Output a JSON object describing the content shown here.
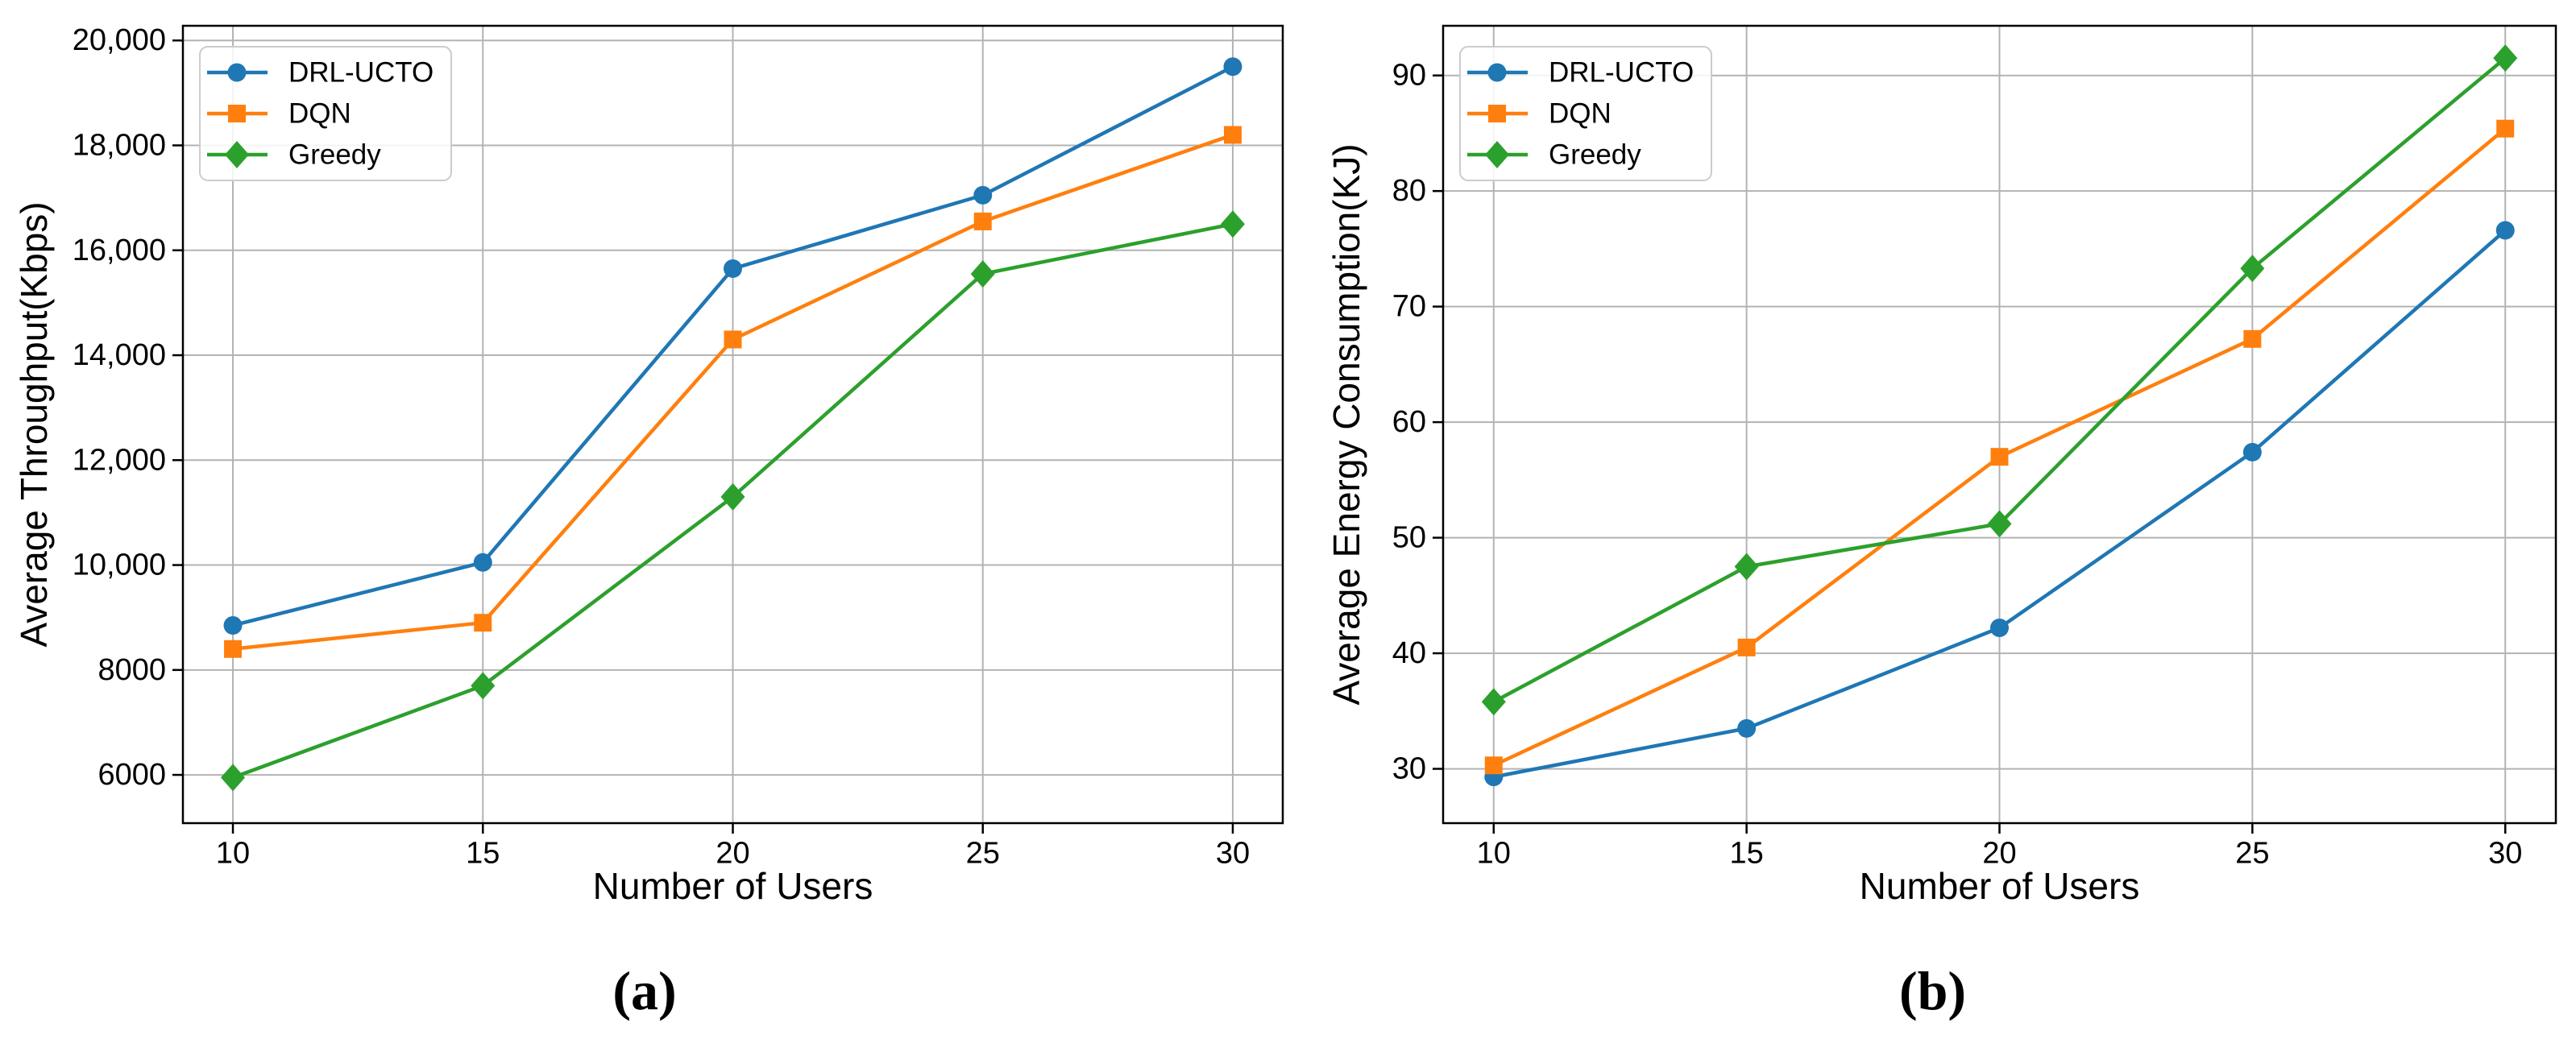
{
  "styles": {
    "grid_color": "#b3b3b3",
    "axis_color": "#000000",
    "text_color": "#000000",
    "legend_border_color": "#cccccc",
    "legend_background": "rgba(255,255,255,0.85)",
    "series_colors": {
      "drl_ucto": "#1f77b4",
      "dqn": "#ff7f0e",
      "greedy": "#2ca02c"
    }
  },
  "chart_data": [
    {
      "type": "line",
      "caption": "(a)",
      "xlabel": "Number of Users",
      "ylabel": "Average Throughput(Kbps)",
      "x": [
        10,
        15,
        20,
        25,
        30
      ],
      "xtick_labels": [
        "10",
        "15",
        "20",
        "25",
        "30"
      ],
      "yticks": [
        6000,
        8000,
        10000,
        12000,
        14000,
        16000,
        18000,
        20000
      ],
      "ytick_labels": [
        "6000",
        "8000",
        "10,000",
        "12,000",
        "14,000",
        "16,000",
        "18,000",
        "20,000"
      ],
      "xlim": [
        9,
        31
      ],
      "ylim": [
        5080,
        20280
      ],
      "grid": true,
      "legend_position": "upper-left",
      "series": [
        {
          "name": "DRL-UCTO",
          "color": "#1f77b4",
          "marker": "circle",
          "values": [
            8850,
            10050,
            15650,
            17050,
            19500
          ]
        },
        {
          "name": "DQN",
          "color": "#ff7f0e",
          "marker": "square",
          "values": [
            8400,
            8900,
            14300,
            16550,
            18200
          ]
        },
        {
          "name": "Greedy",
          "color": "#2ca02c",
          "marker": "diamond",
          "values": [
            5950,
            7700,
            11300,
            15550,
            16500
          ]
        }
      ]
    },
    {
      "type": "line",
      "caption": "(b)",
      "xlabel": "Number of Users",
      "ylabel": "Average Energy Consumption(KJ)",
      "x": [
        10,
        15,
        20,
        25,
        30
      ],
      "xtick_labels": [
        "10",
        "15",
        "20",
        "25",
        "30"
      ],
      "yticks": [
        30,
        40,
        50,
        60,
        70,
        80,
        90
      ],
      "ytick_labels": [
        "30",
        "40",
        "50",
        "60",
        "70",
        "80",
        "90"
      ],
      "xlim": [
        9,
        31
      ],
      "ylim": [
        25.3,
        94.3
      ],
      "grid": true,
      "legend_position": "upper-left",
      "series": [
        {
          "name": "DRL-UCTO",
          "color": "#1f77b4",
          "marker": "circle",
          "values": [
            29.3,
            33.5,
            42.2,
            57.4,
            76.6
          ]
        },
        {
          "name": "DQN",
          "color": "#ff7f0e",
          "marker": "square",
          "values": [
            30.3,
            40.5,
            57.0,
            67.2,
            85.4
          ]
        },
        {
          "name": "Greedy",
          "color": "#2ca02c",
          "marker": "diamond",
          "values": [
            35.8,
            47.5,
            51.2,
            73.3,
            91.5
          ]
        }
      ]
    }
  ]
}
